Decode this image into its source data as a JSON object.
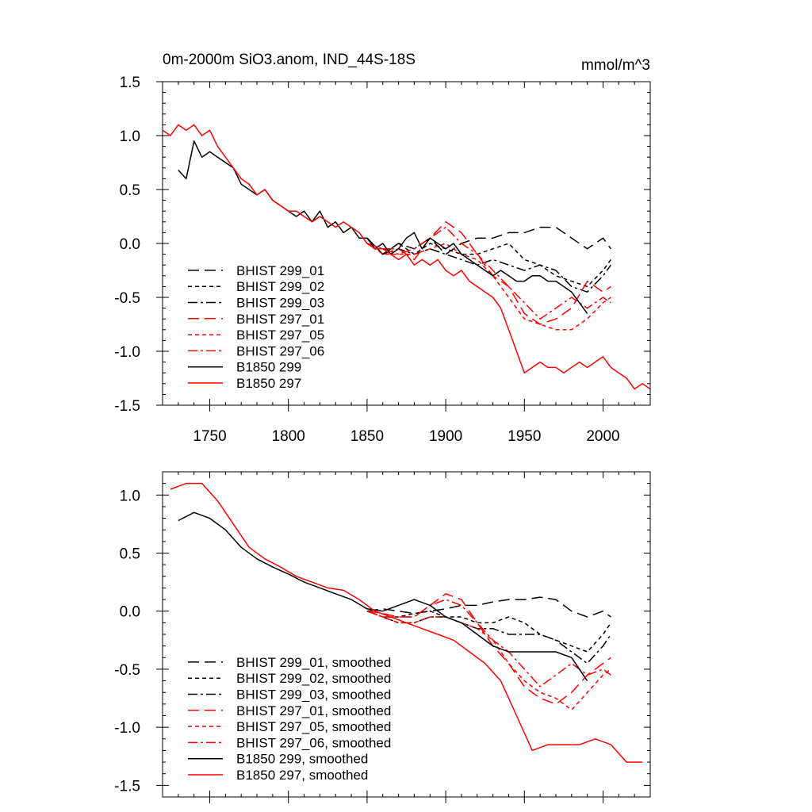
{
  "colors": {
    "black": "#000000",
    "red": "#ff0000"
  },
  "chart_data": [
    {
      "type": "line",
      "title": "0m-2000m SiO3.anom, IND_44S-18S",
      "units": "mmol/m^3",
      "xlim": [
        1720,
        2030
      ],
      "ylim": [
        -1.5,
        1.5
      ],
      "x_ticks": [
        1750,
        1800,
        1850,
        1900,
        1950,
        2000
      ],
      "x_tick_labels": [
        "1750",
        "1800",
        "1850",
        "1900",
        "1950",
        "2000"
      ],
      "y_ticks": [
        -1.5,
        -1.0,
        -0.5,
        0.0,
        0.5,
        1.0,
        1.5
      ],
      "y_tick_labels": [
        "-1.5",
        "-1.0",
        "-0.5",
        "0.0",
        "0.5",
        "1.0",
        "1.5"
      ],
      "legend_placement": "lower-left",
      "grid": false,
      "series": [
        {
          "name": "BHIST 299_01",
          "color": "#000000",
          "dash": "long-dash",
          "x": [
            1850,
            1860,
            1870,
            1880,
            1890,
            1900,
            1910,
            1920,
            1930,
            1940,
            1950,
            1960,
            1970,
            1980,
            1990,
            2000,
            2005
          ],
          "y": [
            0.05,
            -0.1,
            0.0,
            -0.05,
            0.05,
            -0.1,
            0.0,
            0.05,
            0.05,
            0.1,
            0.1,
            0.15,
            0.15,
            0.05,
            -0.05,
            0.05,
            -0.05
          ]
        },
        {
          "name": "BHIST 299_02",
          "color": "#000000",
          "dash": "short-dash",
          "x": [
            1850,
            1860,
            1870,
            1880,
            1890,
            1900,
            1910,
            1920,
            1930,
            1940,
            1950,
            1960,
            1970,
            1980,
            1990,
            2000,
            2005
          ],
          "y": [
            0.05,
            -0.1,
            0.0,
            -0.1,
            0.0,
            -0.05,
            -0.1,
            -0.1,
            -0.05,
            0.0,
            -0.15,
            -0.2,
            -0.3,
            -0.35,
            -0.4,
            -0.25,
            -0.15
          ]
        },
        {
          "name": "BHIST 299_03",
          "color": "#000000",
          "dash": "dash-dot",
          "x": [
            1850,
            1860,
            1870,
            1880,
            1890,
            1900,
            1910,
            1920,
            1930,
            1940,
            1950,
            1960,
            1970,
            1980,
            1990,
            2000,
            2005
          ],
          "y": [
            0.05,
            -0.1,
            -0.05,
            -0.1,
            -0.05,
            -0.1,
            -0.15,
            -0.2,
            -0.15,
            -0.2,
            -0.25,
            -0.2,
            -0.25,
            -0.4,
            -0.45,
            -0.3,
            -0.2
          ]
        },
        {
          "name": "BHIST 297_01",
          "color": "#ff0000",
          "dash": "long-dash",
          "x": [
            1850,
            1860,
            1870,
            1880,
            1890,
            1900,
            1910,
            1920,
            1930,
            1940,
            1950,
            1960,
            1970,
            1980,
            1990,
            2000,
            2005
          ],
          "y": [
            0.0,
            -0.05,
            -0.05,
            -0.15,
            0.05,
            0.2,
            0.1,
            -0.1,
            -0.3,
            -0.4,
            -0.65,
            -0.75,
            -0.7,
            -0.6,
            -0.35,
            -0.45,
            -0.4
          ]
        },
        {
          "name": "BHIST 297_05",
          "color": "#ff0000",
          "dash": "short-dash",
          "x": [
            1850,
            1860,
            1870,
            1880,
            1890,
            1900,
            1910,
            1920,
            1930,
            1940,
            1950,
            1960,
            1970,
            1980,
            1990,
            2000,
            2005
          ],
          "y": [
            0.0,
            -0.1,
            -0.1,
            -0.1,
            -0.05,
            0.0,
            -0.1,
            -0.15,
            -0.3,
            -0.5,
            -0.7,
            -0.75,
            -0.8,
            -0.8,
            -0.7,
            -0.55,
            -0.5
          ]
        },
        {
          "name": "BHIST 297_06",
          "color": "#ff0000",
          "dash": "dash-dot",
          "x": [
            1850,
            1860,
            1870,
            1880,
            1890,
            1900,
            1910,
            1920,
            1930,
            1940,
            1950,
            1960,
            1970,
            1980,
            1990,
            2000,
            2005
          ],
          "y": [
            0.0,
            -0.05,
            -0.1,
            -0.05,
            0.05,
            0.15,
            0.0,
            -0.1,
            -0.25,
            -0.4,
            -0.55,
            -0.7,
            -0.6,
            -0.5,
            -0.6,
            -0.5,
            -0.55
          ]
        },
        {
          "name": "B1850 299",
          "color": "#000000",
          "dash": "solid",
          "x": [
            1730,
            1735,
            1740,
            1745,
            1750,
            1755,
            1760,
            1765,
            1770,
            1775,
            1780,
            1785,
            1790,
            1795,
            1800,
            1805,
            1810,
            1815,
            1820,
            1825,
            1830,
            1835,
            1840,
            1845,
            1850,
            1855,
            1860,
            1865,
            1870,
            1875,
            1880,
            1885,
            1890,
            1895,
            1900,
            1905,
            1910,
            1915,
            1920,
            1925,
            1930,
            1935,
            1940,
            1945,
            1950,
            1955,
            1960,
            1965,
            1970,
            1975,
            1980,
            1985,
            1990
          ],
          "y": [
            0.68,
            0.6,
            0.95,
            0.8,
            0.85,
            0.8,
            0.75,
            0.7,
            0.55,
            0.5,
            0.45,
            0.5,
            0.4,
            0.35,
            0.3,
            0.25,
            0.3,
            0.2,
            0.3,
            0.15,
            0.2,
            0.1,
            0.15,
            0.05,
            0.05,
            -0.05,
            0.0,
            -0.1,
            -0.05,
            0.05,
            0.1,
            -0.05,
            0.05,
            0.0,
            -0.05,
            0.0,
            -0.1,
            -0.15,
            -0.2,
            -0.25,
            -0.3,
            -0.25,
            -0.3,
            -0.35,
            -0.35,
            -0.3,
            -0.3,
            -0.35,
            -0.35,
            -0.4,
            -0.45,
            -0.55,
            -0.65
          ]
        },
        {
          "name": "B1850 297",
          "color": "#ff0000",
          "dash": "solid",
          "x": [
            1720,
            1725,
            1730,
            1735,
            1740,
            1745,
            1750,
            1755,
            1760,
            1765,
            1770,
            1775,
            1780,
            1785,
            1790,
            1795,
            1800,
            1805,
            1810,
            1815,
            1820,
            1825,
            1830,
            1835,
            1840,
            1845,
            1850,
            1855,
            1860,
            1865,
            1870,
            1875,
            1880,
            1885,
            1890,
            1895,
            1900,
            1905,
            1910,
            1915,
            1920,
            1925,
            1930,
            1935,
            1940,
            1945,
            1950,
            1955,
            1960,
            1965,
            1970,
            1975,
            1980,
            1985,
            1990,
            1995,
            2000,
            2005,
            2010,
            2015,
            2020,
            2025,
            2030
          ],
          "y": [
            1.05,
            1.0,
            1.1,
            1.05,
            1.1,
            1.0,
            1.05,
            0.9,
            0.8,
            0.7,
            0.6,
            0.55,
            0.45,
            0.5,
            0.4,
            0.35,
            0.3,
            0.3,
            0.25,
            0.2,
            0.25,
            0.2,
            0.15,
            0.2,
            0.15,
            0.1,
            0.0,
            -0.05,
            -0.05,
            -0.1,
            -0.15,
            -0.1,
            -0.2,
            -0.15,
            -0.2,
            -0.15,
            -0.25,
            -0.3,
            -0.25,
            -0.35,
            -0.4,
            -0.45,
            -0.5,
            -0.6,
            -0.8,
            -1.0,
            -1.2,
            -1.15,
            -1.1,
            -1.15,
            -1.15,
            -1.2,
            -1.15,
            -1.1,
            -1.15,
            -1.1,
            -1.05,
            -1.15,
            -1.2,
            -1.25,
            -1.35,
            -1.3,
            -1.35
          ]
        }
      ]
    },
    {
      "type": "line",
      "xlim": [
        1720,
        2030
      ],
      "ylim": [
        -1.6,
        1.2
      ],
      "y_ticks": [
        -1.5,
        -1.0,
        -0.5,
        0.0,
        0.5,
        1.0
      ],
      "y_tick_labels": [
        "-1.5",
        "-1.0",
        "-0.5",
        "0.0",
        "0.5",
        "1.0"
      ],
      "legend_placement": "lower-left",
      "grid": false,
      "series": [
        {
          "name": "BHIST 299_01, smoothed",
          "color": "#000000",
          "dash": "long-dash",
          "x": [
            1850,
            1860,
            1870,
            1880,
            1890,
            1900,
            1910,
            1920,
            1930,
            1940,
            1950,
            1960,
            1970,
            1980,
            1990,
            2000,
            2005
          ],
          "y": [
            0.0,
            0.02,
            0.0,
            -0.02,
            0.0,
            0.02,
            0.05,
            0.05,
            0.08,
            0.1,
            0.1,
            0.12,
            0.1,
            0.0,
            -0.05,
            0.0,
            -0.05
          ]
        },
        {
          "name": "BHIST 299_02, smoothed",
          "color": "#000000",
          "dash": "short-dash",
          "x": [
            1850,
            1860,
            1870,
            1880,
            1890,
            1900,
            1910,
            1920,
            1930,
            1940,
            1950,
            1960,
            1970,
            1980,
            1990,
            2000,
            2005
          ],
          "y": [
            0.0,
            -0.05,
            -0.05,
            -0.02,
            0.0,
            -0.05,
            -0.05,
            -0.1,
            -0.1,
            -0.05,
            -0.1,
            -0.2,
            -0.25,
            -0.3,
            -0.35,
            -0.2,
            -0.1
          ]
        },
        {
          "name": "BHIST 299_03, smoothed",
          "color": "#000000",
          "dash": "dash-dot",
          "x": [
            1850,
            1860,
            1870,
            1880,
            1890,
            1900,
            1910,
            1920,
            1930,
            1940,
            1950,
            1960,
            1970,
            1980,
            1990,
            2000,
            2005
          ],
          "y": [
            0.0,
            -0.05,
            -0.1,
            -0.1,
            -0.05,
            -0.05,
            -0.1,
            -0.15,
            -0.15,
            -0.2,
            -0.2,
            -0.2,
            -0.25,
            -0.35,
            -0.45,
            -0.3,
            -0.2
          ]
        },
        {
          "name": "BHIST 297_01, smoothed",
          "color": "#ff0000",
          "dash": "long-dash",
          "x": [
            1850,
            1860,
            1870,
            1880,
            1890,
            1900,
            1910,
            1920,
            1930,
            1940,
            1950,
            1960,
            1970,
            1980,
            1990,
            2000,
            2005
          ],
          "y": [
            0.0,
            -0.02,
            -0.05,
            -0.05,
            0.05,
            0.15,
            0.1,
            -0.1,
            -0.3,
            -0.45,
            -0.65,
            -0.75,
            -0.8,
            -0.7,
            -0.55,
            -0.45,
            -0.4
          ]
        },
        {
          "name": "BHIST 297_05, smoothed",
          "color": "#ff0000",
          "dash": "short-dash",
          "x": [
            1850,
            1860,
            1870,
            1880,
            1890,
            1900,
            1910,
            1920,
            1930,
            1940,
            1950,
            1960,
            1970,
            1980,
            1990,
            2000,
            2005
          ],
          "y": [
            0.0,
            -0.05,
            -0.1,
            -0.1,
            -0.05,
            -0.05,
            -0.1,
            -0.15,
            -0.25,
            -0.45,
            -0.6,
            -0.7,
            -0.75,
            -0.85,
            -0.7,
            -0.55,
            -0.5
          ]
        },
        {
          "name": "BHIST 297_06, smoothed",
          "color": "#ff0000",
          "dash": "dash-dot",
          "x": [
            1850,
            1860,
            1870,
            1880,
            1890,
            1900,
            1910,
            1920,
            1930,
            1940,
            1950,
            1960,
            1970,
            1980,
            1990,
            2000,
            2005
          ],
          "y": [
            0.0,
            -0.05,
            -0.05,
            -0.05,
            0.05,
            0.1,
            0.05,
            -0.1,
            -0.25,
            -0.35,
            -0.5,
            -0.65,
            -0.55,
            -0.45,
            -0.55,
            -0.5,
            -0.55
          ]
        },
        {
          "name": "B1850 299, smoothed",
          "color": "#000000",
          "dash": "solid",
          "x": [
            1730,
            1740,
            1750,
            1760,
            1770,
            1780,
            1790,
            1800,
            1810,
            1820,
            1830,
            1840,
            1850,
            1860,
            1870,
            1880,
            1890,
            1900,
            1910,
            1920,
            1930,
            1940,
            1950,
            1960,
            1970,
            1980,
            1990
          ],
          "y": [
            0.78,
            0.85,
            0.8,
            0.7,
            0.55,
            0.45,
            0.38,
            0.32,
            0.25,
            0.2,
            0.15,
            0.1,
            0.02,
            0.0,
            0.05,
            0.1,
            0.05,
            -0.05,
            -0.1,
            -0.2,
            -0.3,
            -0.35,
            -0.35,
            -0.35,
            -0.35,
            -0.4,
            -0.6
          ]
        },
        {
          "name": "B1850 297, smoothed",
          "color": "#ff0000",
          "dash": "solid",
          "x": [
            1725,
            1735,
            1745,
            1755,
            1765,
            1775,
            1785,
            1795,
            1805,
            1815,
            1825,
            1835,
            1845,
            1855,
            1865,
            1875,
            1885,
            1895,
            1905,
            1915,
            1925,
            1935,
            1945,
            1955,
            1965,
            1975,
            1985,
            1995,
            2005,
            2015,
            2025
          ],
          "y": [
            1.05,
            1.1,
            1.1,
            0.95,
            0.75,
            0.55,
            0.45,
            0.38,
            0.3,
            0.25,
            0.2,
            0.18,
            0.1,
            0.0,
            -0.05,
            -0.1,
            -0.15,
            -0.2,
            -0.25,
            -0.35,
            -0.45,
            -0.6,
            -0.9,
            -1.2,
            -1.15,
            -1.15,
            -1.15,
            -1.1,
            -1.15,
            -1.3,
            -1.3
          ]
        }
      ]
    }
  ]
}
